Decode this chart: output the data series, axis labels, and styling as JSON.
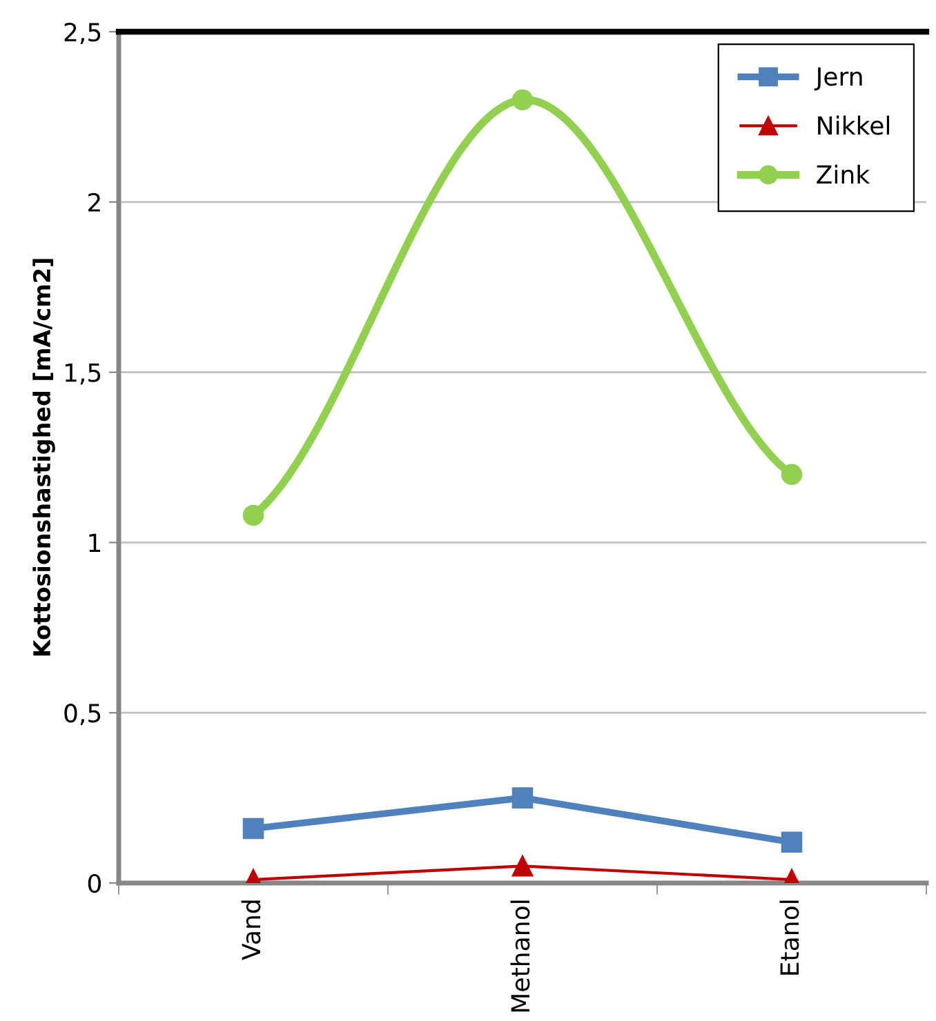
{
  "chart_data": {
    "type": "line",
    "ylabel": "Kottosionshastighed [mA/cm2]",
    "categories": [
      "Vand",
      "Methanol",
      "Etanol"
    ],
    "series": [
      {
        "name": "Jern",
        "color": "#4f81bd",
        "marker": "square",
        "values": [
          0.16,
          0.25,
          0.12
        ]
      },
      {
        "name": "Nikkel",
        "color": "#c00000",
        "marker": "triangle",
        "values": [
          0.01,
          0.05,
          0.01
        ]
      },
      {
        "name": "Zink",
        "color": "#92d050",
        "marker": "circle",
        "values": [
          1.08,
          2.3,
          1.2
        ]
      }
    ],
    "ylim": [
      0,
      2.5
    ],
    "yticks": [
      0,
      {
        "value": 0.5,
        "label": "0,5"
      },
      1,
      {
        "value": 1.5,
        "label": "1,5"
      },
      2,
      {
        "value": 2.5,
        "label": "2,5"
      }
    ],
    "grid": "y",
    "legend": "top right"
  }
}
